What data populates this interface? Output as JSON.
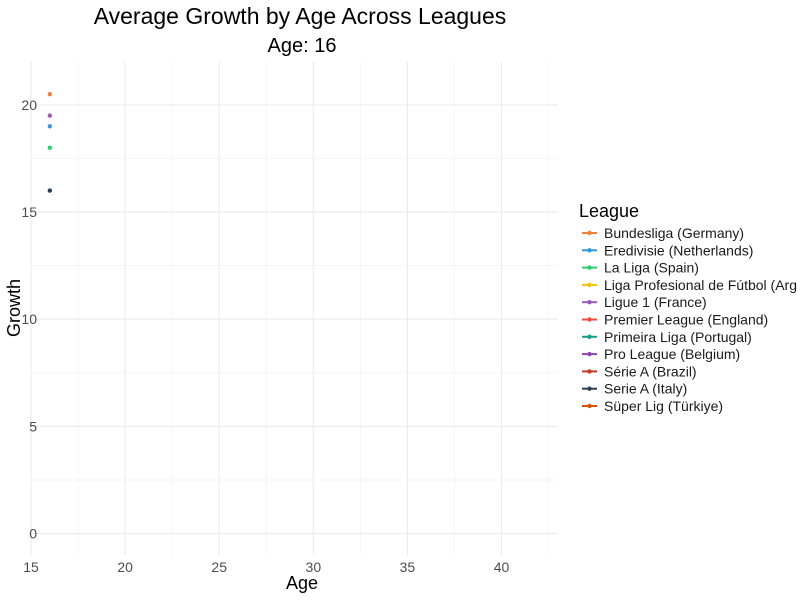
{
  "chart_data": {
    "type": "line",
    "title": "Average Growth by Age Across Leagues",
    "subtitle": "Age: 16",
    "xlabel": "Age",
    "ylabel": "Growth",
    "xlim": [
      15,
      43
    ],
    "ylim": [
      -1,
      22
    ],
    "xticks": [
      15,
      20,
      25,
      30,
      35,
      40
    ],
    "yticks": [
      0,
      5,
      10,
      15,
      20
    ],
    "grid": true,
    "legend": {
      "title": "League",
      "placement": "right"
    },
    "series": [
      {
        "name": "Bundesliga (Germany)",
        "color": "#e8833a",
        "points": [
          {
            "x": 16,
            "y": 20.5
          }
        ]
      },
      {
        "name": "Eredivisie (Netherlands)",
        "color": "#3498db",
        "points": [
          {
            "x": 16,
            "y": 19.0
          }
        ]
      },
      {
        "name": "La Liga (Spain)",
        "color": "#2ecc71",
        "points": [
          {
            "x": 16,
            "y": 18.0
          }
        ]
      },
      {
        "name": "Liga Profesional de Fútbol (Arg",
        "color": "#f1c40f",
        "points": []
      },
      {
        "name": "Ligue 1 (France)",
        "color": "#9b59b6",
        "points": [
          {
            "x": 16,
            "y": 19.5
          }
        ]
      },
      {
        "name": "Premier League (England)",
        "color": "#e74c3c",
        "points": []
      },
      {
        "name": "Primeira Liga (Portugal)",
        "color": "#16a085",
        "points": []
      },
      {
        "name": "Pro League (Belgium)",
        "color": "#8e44ad",
        "points": []
      },
      {
        "name": "Série A (Brazil)",
        "color": "#c0392b",
        "points": []
      },
      {
        "name": "Serie A (Italy)",
        "color": "#2c3e50",
        "points": [
          {
            "x": 16,
            "y": 16.0
          }
        ]
      },
      {
        "name": "Süper Lig (Türkiye)",
        "color": "#d35400",
        "points": []
      }
    ]
  }
}
